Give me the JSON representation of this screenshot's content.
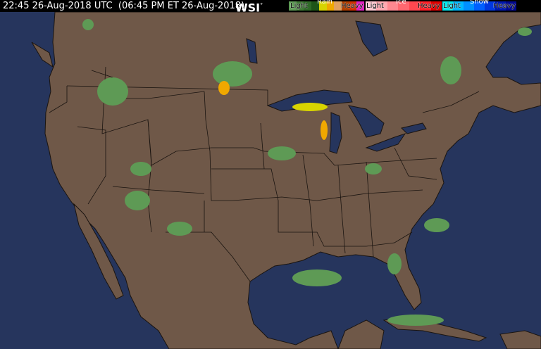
{
  "header": {
    "timestamp": "22:45 26-Aug-2018 UTC  (06:45 PM ET 26-Aug-2018)",
    "logo": "WSI",
    "logo_mark": "°"
  },
  "legend": {
    "rain": {
      "title": "Rain",
      "light": "Light",
      "heavy": "Heavy",
      "colors": [
        "#5e9a55",
        "#3f7a35",
        "#2f6a28",
        "#1e5518",
        "#d8d400",
        "#f0a800",
        "#e0a060",
        "#b04000",
        "#d03000",
        "#e020c0"
      ]
    },
    "ice": {
      "title": "Ice",
      "light": "Light",
      "heavy": "Heavy",
      "colors": [
        "#ffc8d0",
        "#ffa8b0",
        "#ff8890",
        "#ff6870",
        "#ff4850",
        "#ff2028",
        "#e00000"
      ]
    },
    "snow": {
      "title": "Snow",
      "light": "Light",
      "heavy": "Heavy",
      "colors": [
        "#00e8f0",
        "#00b8ff",
        "#0090ff",
        "#0060ff",
        "#0038e0",
        "#0018b0",
        "#000890"
      ]
    }
  },
  "colors": {
    "ocean": "#26355d",
    "land": "#6f5848",
    "border": "#1a1410",
    "lake": "#26355d"
  }
}
